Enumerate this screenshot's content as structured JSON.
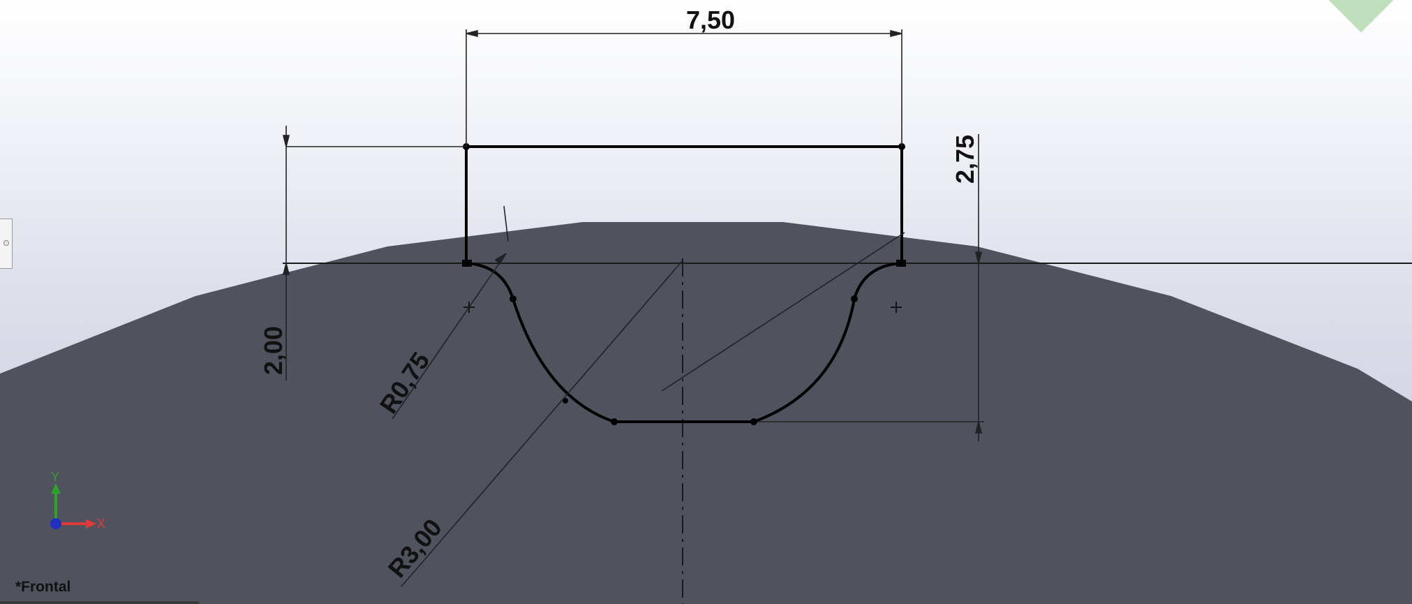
{
  "view": {
    "name": "*Frontal"
  },
  "dimensions": {
    "width": "7,50",
    "height_total": "2,75",
    "offset_left": "2,00",
    "fillet_radius": "R0,75",
    "arc_radius": "R3,00"
  },
  "triad": {
    "x_label": "X",
    "y_label": "Y"
  },
  "colors": {
    "part_body": "#50525d",
    "background_top": "#ffffff",
    "background_bottom": "#d2d4e1",
    "sketch_line": "#000000",
    "axis_x": "#e03b3b",
    "axis_y": "#2fa12f",
    "origin": "#1f2fbf"
  },
  "icons": {
    "triad": "coordinate-triad-icon",
    "confirm_corner": "confirm-corner-icon",
    "side_tab": "side-panel-tab-icon"
  }
}
